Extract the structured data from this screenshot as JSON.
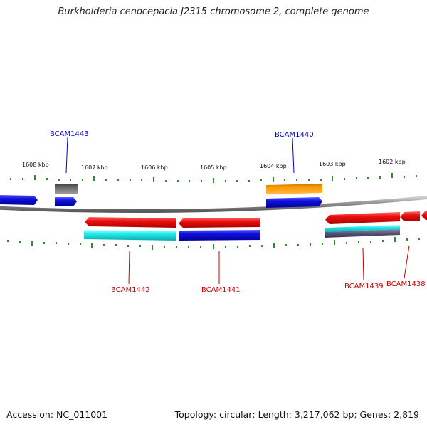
{
  "title": "Burkholderia cenocepacia J2315 chromosome 2, complete genome",
  "footer": {
    "accession": "Accession: NC_011001",
    "summary": "Topology: circular; Length: 3,217,062 bp; Genes: 2,819"
  },
  "colors": {
    "backbone": "#8a8a8a",
    "tick": "#2e8b2e",
    "label_top": "#0000cc",
    "label_bottom": "#cc0000",
    "features": [
      "#ee1111",
      "#1111dd",
      "#22dddd",
      "#ff9900",
      "#666666",
      "#555588"
    ]
  },
  "scale_labels": [
    "1608 kbp",
    "1607 kbp",
    "1606 kbp",
    "1605 kbp",
    "1604 kbp",
    "1603 kbp",
    "1602 kbp"
  ],
  "gene_labels": {
    "top": [
      "BCAM1443",
      "BCAM1440"
    ],
    "bottom": [
      "BCAM1442",
      "BCAM1441",
      "BCAM1439",
      "BCAM1438"
    ]
  }
}
